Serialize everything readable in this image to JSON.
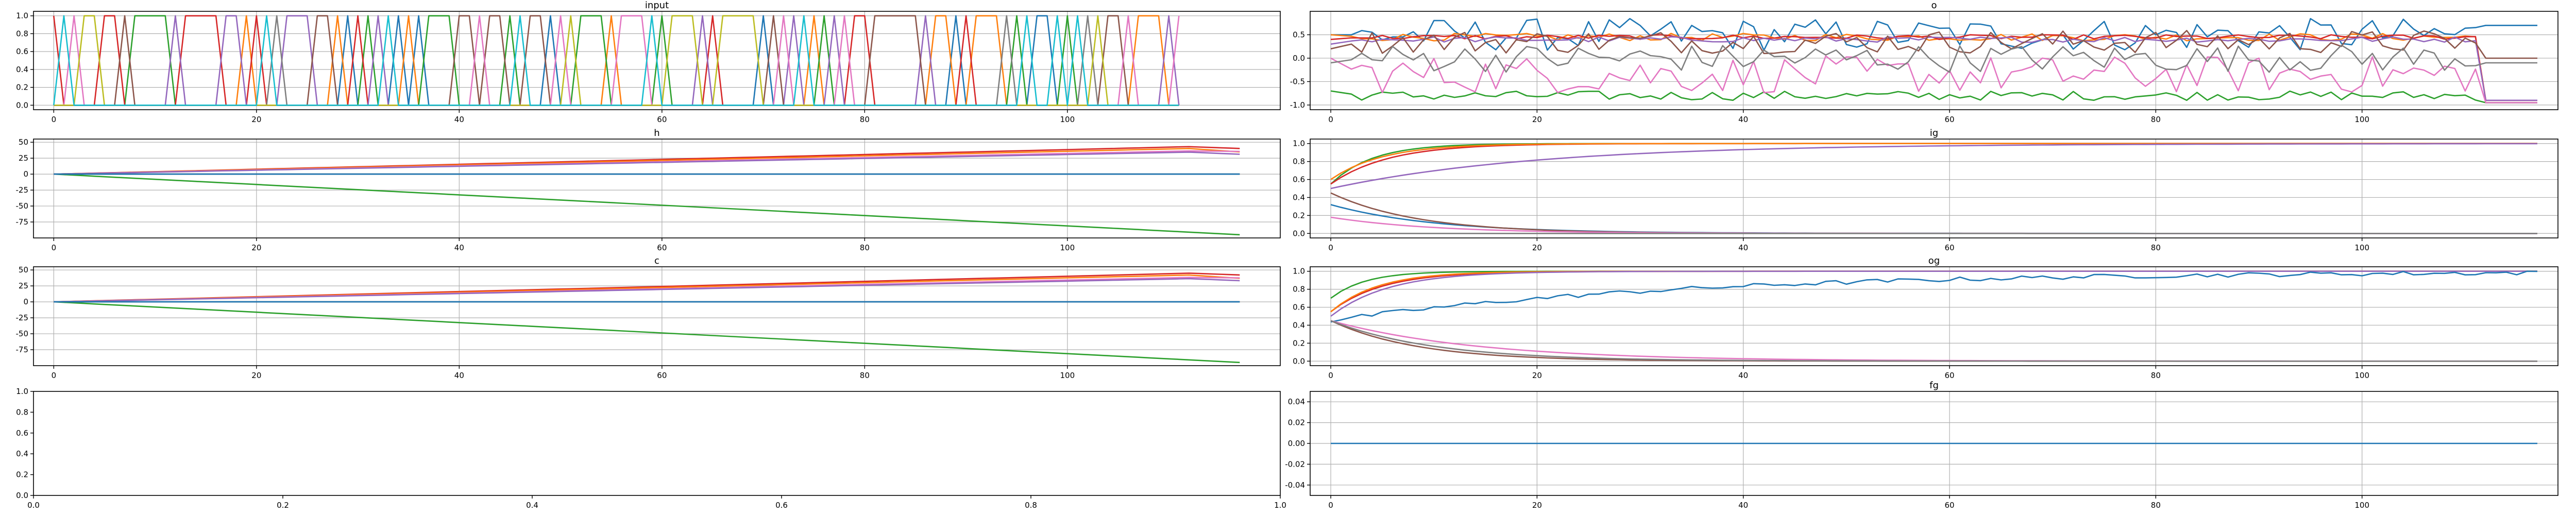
{
  "palette": [
    "#1f77b4",
    "#ff7f0e",
    "#2ca02c",
    "#d62728",
    "#9467bd",
    "#8c564b",
    "#e377c2",
    "#7f7f7f",
    "#bcbd22",
    "#17becf"
  ],
  "chart_data": [
    {
      "id": "input",
      "type": "line",
      "title": "input",
      "xlabel": "",
      "ylabel": "",
      "grid": true,
      "xlim": [
        -2,
        121
      ],
      "ylim": [
        -0.05,
        1.05
      ],
      "xticks": [
        0,
        20,
        40,
        60,
        80,
        100
      ],
      "yticks": [
        0.0,
        0.2,
        0.4,
        0.6,
        0.8,
        1.0
      ],
      "n_points": 112,
      "series_count": 10,
      "description": "one-hot input: at each step exactly one of 10 series equals 1"
    },
    {
      "id": "o",
      "type": "line",
      "title": "o",
      "xlabel": "",
      "ylabel": "",
      "grid": true,
      "xlim": [
        -2,
        119
      ],
      "ylim": [
        -1.1,
        1.0
      ],
      "xticks": [
        0,
        20,
        40,
        60,
        80,
        100
      ],
      "yticks": [
        -1.0,
        -0.5,
        0.0,
        0.5
      ],
      "n_points": 118,
      "series": [
        {
          "color": "#1f77b4",
          "start": 0.5,
          "level": 0.5,
          "noise": 0.35,
          "end": 0.7
        },
        {
          "color": "#ff7f0e",
          "start": 0.5,
          "level": 0.45,
          "noise": 0.08,
          "end": -0.9
        },
        {
          "color": "#2ca02c",
          "start": -0.7,
          "level": -0.8,
          "noise": 0.1,
          "end": -0.95
        },
        {
          "color": "#d62728",
          "start": 0.4,
          "level": 0.45,
          "noise": 0.05,
          "end": -0.9
        },
        {
          "color": "#9467bd",
          "start": 0.3,
          "level": 0.4,
          "noise": 0.06,
          "end": -0.9
        },
        {
          "color": "#8c564b",
          "start": 0.2,
          "level": 0.35,
          "noise": 0.25,
          "end": 0.0
        },
        {
          "color": "#e377c2",
          "start": 0.0,
          "level": -0.35,
          "noise": 0.4,
          "end": -0.95
        },
        {
          "color": "#7f7f7f",
          "start": -0.1,
          "level": 0.0,
          "noise": 0.3,
          "end": -0.1
        }
      ]
    },
    {
      "id": "h",
      "type": "line",
      "title": "h",
      "xlabel": "",
      "ylabel": "",
      "grid": true,
      "xlim": [
        -2,
        121
      ],
      "ylim": [
        -100,
        55
      ],
      "xticks": [
        0,
        20,
        40,
        60,
        80,
        100
      ],
      "yticks": [
        -75,
        -50,
        -25,
        0,
        25,
        50
      ],
      "n_points": 118,
      "series": [
        {
          "color": "#2ca02c",
          "start": 0,
          "end": -95
        },
        {
          "color": "#d62728",
          "start": 0,
          "end": 45
        },
        {
          "color": "#ff7f0e",
          "start": 0,
          "end": 42
        },
        {
          "color": "#e377c2",
          "start": 0,
          "end": 38
        },
        {
          "color": "#9467bd",
          "start": 0,
          "end": 36
        },
        {
          "color": "#8c564b",
          "start": 0,
          "end": 0
        },
        {
          "color": "#7f7f7f",
          "start": 0,
          "end": 0
        },
        {
          "color": "#1f77b4",
          "start": 0,
          "end": 0
        }
      ]
    },
    {
      "id": "ig",
      "type": "line",
      "title": "ig",
      "xlabel": "",
      "ylabel": "",
      "grid": true,
      "xlim": [
        -2,
        119
      ],
      "ylim": [
        -0.05,
        1.05
      ],
      "xticks": [
        0,
        20,
        40,
        60,
        80,
        100
      ],
      "yticks": [
        0.0,
        0.2,
        0.4,
        0.6,
        0.8,
        1.0
      ],
      "n_points": 118,
      "series": [
        {
          "color": "#2ca02c",
          "start": 0.55,
          "end": 1.0,
          "rate": 0.25
        },
        {
          "color": "#d62728",
          "start": 0.55,
          "end": 1.0,
          "rate": 0.18
        },
        {
          "color": "#ff7f0e",
          "start": 0.6,
          "end": 1.0,
          "rate": 0.2
        },
        {
          "color": "#9467bd",
          "start": 0.5,
          "end": 1.0,
          "rate": 0.05
        },
        {
          "color": "#1f77b4",
          "start": 0.32,
          "end": 0.0,
          "rate": 0.1
        },
        {
          "color": "#8c564b",
          "start": 0.45,
          "end": 0.0,
          "rate": 0.12
        },
        {
          "color": "#e377c2",
          "start": 0.18,
          "end": 0.0,
          "rate": 0.1
        },
        {
          "color": "#7f7f7f",
          "start": 0.0,
          "end": 0.0,
          "rate": 0.1
        }
      ]
    },
    {
      "id": "c",
      "type": "line",
      "title": "c",
      "xlabel": "",
      "ylabel": "",
      "grid": true,
      "xlim": [
        -2,
        121
      ],
      "ylim": [
        -100,
        55
      ],
      "xticks": [
        0,
        20,
        40,
        60,
        80,
        100
      ],
      "yticks": [
        -75,
        -50,
        -25,
        0,
        25,
        50
      ],
      "n_points": 118,
      "series": [
        {
          "color": "#2ca02c",
          "start": 0,
          "end": -95
        },
        {
          "color": "#d62728",
          "start": 0,
          "end": 47
        },
        {
          "color": "#ff7f0e",
          "start": 0,
          "end": 44
        },
        {
          "color": "#e377c2",
          "start": 0,
          "end": 40
        },
        {
          "color": "#9467bd",
          "start": 0,
          "end": 38
        },
        {
          "color": "#8c564b",
          "start": 0,
          "end": 0
        },
        {
          "color": "#7f7f7f",
          "start": 0,
          "end": 0
        },
        {
          "color": "#1f77b4",
          "start": 0,
          "end": 0
        }
      ]
    },
    {
      "id": "og",
      "type": "line",
      "title": "og",
      "xlabel": "",
      "ylabel": "",
      "grid": true,
      "xlim": [
        -2,
        119
      ],
      "ylim": [
        -0.05,
        1.05
      ],
      "xticks": [
        0,
        20,
        40,
        60,
        80,
        100
      ],
      "yticks": [
        0.0,
        0.2,
        0.4,
        0.6,
        0.8,
        1.0
      ],
      "n_points": 118,
      "series": [
        {
          "color": "#2ca02c",
          "start": 0.7,
          "end": 1.0,
          "rate": 0.3
        },
        {
          "color": "#d62728",
          "start": 0.55,
          "end": 1.0,
          "rate": 0.2
        },
        {
          "color": "#ff7f0e",
          "start": 0.55,
          "end": 1.0,
          "rate": 0.22
        },
        {
          "color": "#9467bd",
          "start": 0.5,
          "end": 1.0,
          "rate": 0.18
        },
        {
          "color": "#1f77b4",
          "start": 0.45,
          "end": 1.0,
          "rate": 0.03
        },
        {
          "color": "#8c564b",
          "start": 0.45,
          "end": 0.0,
          "rate": 0.12
        },
        {
          "color": "#e377c2",
          "start": 0.45,
          "end": 0.0,
          "rate": 0.07
        },
        {
          "color": "#7f7f7f",
          "start": 0.45,
          "end": 0.0,
          "rate": 0.1
        }
      ]
    },
    {
      "id": "empty",
      "type": "line",
      "title": "",
      "xlabel": "",
      "ylabel": "",
      "grid": false,
      "xlim": [
        0.0,
        1.0
      ],
      "ylim": [
        0.0,
        1.0
      ],
      "xticks": [
        0.0,
        0.2,
        0.4,
        0.6,
        0.8,
        1.0
      ],
      "yticks": [
        0.0,
        0.2,
        0.4,
        0.6,
        0.8,
        1.0
      ],
      "n_points": 0,
      "series": []
    },
    {
      "id": "fg",
      "type": "line",
      "title": "fg",
      "xlabel": "",
      "ylabel": "",
      "grid": true,
      "xlim": [
        -2,
        119
      ],
      "ylim": [
        -0.05,
        0.05
      ],
      "xticks": [
        0,
        20,
        40,
        60,
        80,
        100
      ],
      "yticks": [
        -0.04,
        -0.02,
        0.0,
        0.02,
        0.04
      ],
      "n_points": 118,
      "series": [
        {
          "color": "#1f77b4",
          "constant": 0.0
        }
      ]
    }
  ]
}
